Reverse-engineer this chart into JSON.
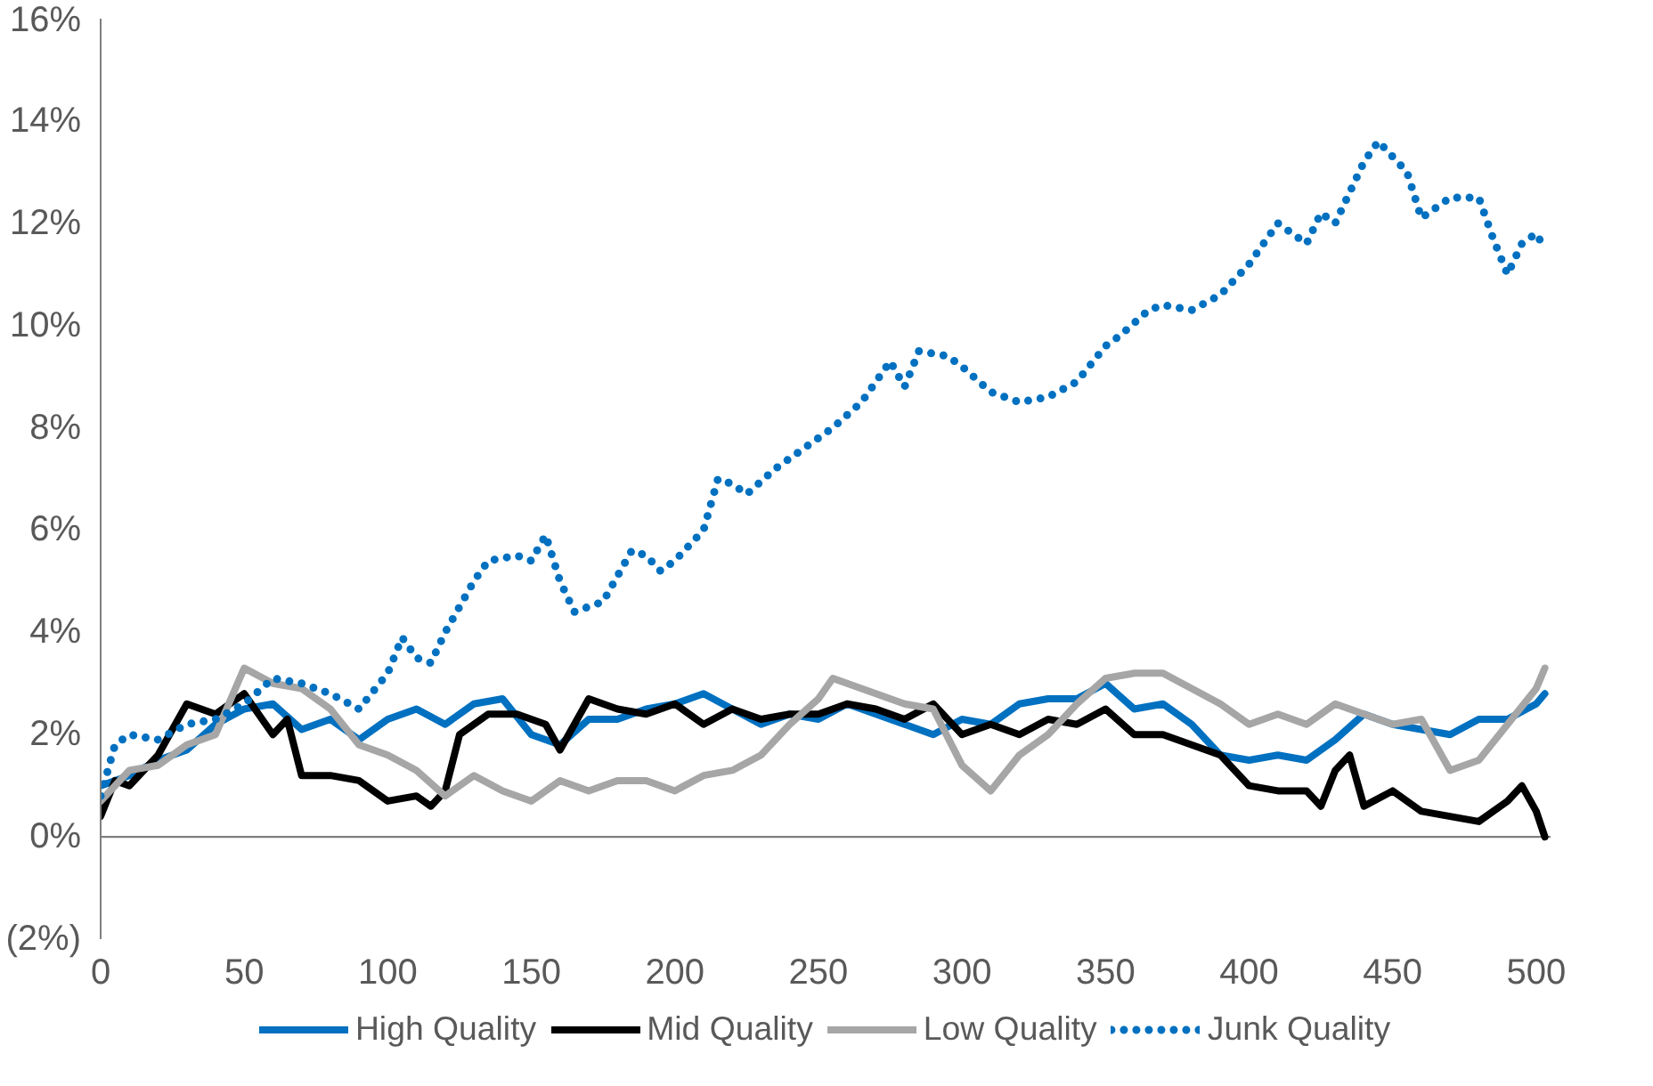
{
  "chart_data": {
    "type": "line",
    "xlim": [
      0,
      505
    ],
    "ylim": [
      -2,
      16
    ],
    "xticks": [
      0,
      50,
      100,
      150,
      200,
      250,
      300,
      350,
      400,
      450,
      500
    ],
    "yticks": [
      {
        "value": -2,
        "label": "(2%)"
      },
      {
        "value": 0,
        "label": "0%"
      },
      {
        "value": 2,
        "label": "2%"
      },
      {
        "value": 4,
        "label": "4%"
      },
      {
        "value": 6,
        "label": "6%"
      },
      {
        "value": 8,
        "label": "8%"
      },
      {
        "value": 10,
        "label": "10%"
      },
      {
        "value": 12,
        "label": "12%"
      },
      {
        "value": 14,
        "label": "14%"
      },
      {
        "value": 16,
        "label": "16%"
      }
    ],
    "grid": false,
    "legend": "bottom",
    "marker": "none",
    "ref_lines": [
      {
        "axis": "y",
        "value": 0,
        "color": "#7f7f7f"
      }
    ],
    "series": [
      {
        "name": "High Quality",
        "color": "#0070c0",
        "line_style": "solid",
        "x": [
          0,
          10,
          20,
          30,
          40,
          50,
          60,
          70,
          80,
          90,
          100,
          110,
          120,
          130,
          140,
          150,
          160,
          170,
          180,
          190,
          200,
          210,
          220,
          230,
          240,
          250,
          260,
          270,
          280,
          290,
          300,
          310,
          320,
          330,
          340,
          350,
          360,
          370,
          380,
          390,
          400,
          410,
          420,
          430,
          440,
          450,
          460,
          470,
          480,
          490,
          500,
          503
        ],
        "values": [
          1.0,
          1.2,
          1.5,
          1.7,
          2.2,
          2.5,
          2.6,
          2.1,
          2.3,
          1.9,
          2.3,
          2.5,
          2.2,
          2.6,
          2.7,
          2.0,
          1.8,
          2.3,
          2.3,
          2.5,
          2.6,
          2.8,
          2.5,
          2.2,
          2.4,
          2.3,
          2.6,
          2.4,
          2.2,
          2.0,
          2.3,
          2.2,
          2.6,
          2.7,
          2.7,
          3.0,
          2.5,
          2.6,
          2.2,
          1.6,
          1.5,
          1.6,
          1.5,
          1.9,
          2.4,
          2.2,
          2.1,
          2.0,
          2.3,
          2.3,
          2.6,
          2.8
        ]
      },
      {
        "name": "Mid Quality",
        "color": "#000000",
        "line_style": "solid",
        "x": [
          0,
          5,
          10,
          20,
          30,
          40,
          50,
          60,
          65,
          70,
          80,
          90,
          100,
          110,
          115,
          120,
          125,
          135,
          145,
          155,
          160,
          170,
          180,
          190,
          200,
          210,
          220,
          230,
          240,
          250,
          260,
          270,
          280,
          290,
          300,
          310,
          320,
          330,
          340,
          350,
          360,
          370,
          380,
          390,
          400,
          410,
          420,
          425,
          430,
          435,
          440,
          450,
          460,
          470,
          480,
          490,
          495,
          500,
          503
        ],
        "values": [
          0.4,
          1.1,
          1.0,
          1.6,
          2.6,
          2.4,
          2.8,
          2.0,
          2.3,
          1.2,
          1.2,
          1.1,
          0.7,
          0.8,
          0.6,
          0.9,
          2.0,
          2.4,
          2.4,
          2.2,
          1.7,
          2.7,
          2.5,
          2.4,
          2.6,
          2.2,
          2.5,
          2.3,
          2.4,
          2.4,
          2.6,
          2.5,
          2.3,
          2.6,
          2.0,
          2.2,
          2.0,
          2.3,
          2.2,
          2.5,
          2.0,
          2.0,
          1.8,
          1.6,
          1.0,
          0.9,
          0.9,
          0.6,
          1.3,
          1.6,
          0.6,
          0.9,
          0.5,
          0.4,
          0.3,
          0.7,
          1.0,
          0.5,
          0.0
        ]
      },
      {
        "name": "Low Quality",
        "color": "#a6a6a6",
        "line_style": "solid",
        "x": [
          0,
          10,
          20,
          30,
          40,
          50,
          60,
          70,
          80,
          90,
          100,
          110,
          120,
          130,
          140,
          150,
          160,
          170,
          180,
          190,
          200,
          210,
          220,
          230,
          240,
          250,
          255,
          260,
          270,
          280,
          290,
          300,
          310,
          320,
          330,
          340,
          350,
          360,
          370,
          380,
          390,
          400,
          410,
          420,
          430,
          440,
          450,
          460,
          470,
          480,
          490,
          500,
          503
        ],
        "values": [
          0.7,
          1.3,
          1.4,
          1.8,
          2.0,
          3.3,
          3.0,
          2.9,
          2.5,
          1.8,
          1.6,
          1.3,
          0.8,
          1.2,
          0.9,
          0.7,
          1.1,
          0.9,
          1.1,
          1.1,
          0.9,
          1.2,
          1.3,
          1.6,
          2.2,
          2.7,
          3.1,
          3.0,
          2.8,
          2.6,
          2.5,
          1.4,
          0.9,
          1.6,
          2.0,
          2.6,
          3.1,
          3.2,
          3.2,
          2.9,
          2.6,
          2.2,
          2.4,
          2.2,
          2.6,
          2.4,
          2.2,
          2.3,
          1.3,
          1.5,
          2.2,
          2.9,
          3.3
        ]
      },
      {
        "name": "Junk Quality",
        "color": "#0070c0",
        "line_style": "dotted",
        "x": [
          0,
          5,
          10,
          20,
          30,
          40,
          50,
          60,
          70,
          80,
          90,
          100,
          105,
          110,
          115,
          120,
          130,
          135,
          145,
          150,
          155,
          160,
          165,
          175,
          185,
          190,
          195,
          200,
          210,
          215,
          220,
          225,
          235,
          245,
          255,
          265,
          275,
          280,
          285,
          295,
          300,
          310,
          320,
          330,
          340,
          350,
          355,
          365,
          370,
          380,
          390,
          400,
          410,
          420,
          425,
          430,
          440,
          445,
          455,
          460,
          470,
          480,
          485,
          490,
          495,
          500,
          503
        ],
        "values": [
          0.8,
          1.8,
          2.0,
          1.9,
          2.2,
          2.3,
          2.6,
          3.1,
          3.0,
          2.8,
          2.5,
          3.2,
          3.9,
          3.5,
          3.4,
          4.0,
          5.0,
          5.4,
          5.5,
          5.4,
          5.9,
          5.0,
          4.4,
          4.6,
          5.6,
          5.5,
          5.2,
          5.4,
          6.0,
          7.0,
          6.9,
          6.7,
          7.2,
          7.6,
          8.0,
          8.5,
          9.3,
          8.8,
          9.5,
          9.4,
          9.2,
          8.7,
          8.5,
          8.6,
          8.9,
          9.6,
          9.8,
          10.3,
          10.4,
          10.3,
          10.6,
          11.2,
          12.0,
          11.6,
          12.2,
          12.0,
          13.2,
          13.6,
          13.0,
          12.1,
          12.5,
          12.5,
          11.7,
          11.0,
          11.6,
          11.8,
          11.5
        ]
      }
    ]
  }
}
